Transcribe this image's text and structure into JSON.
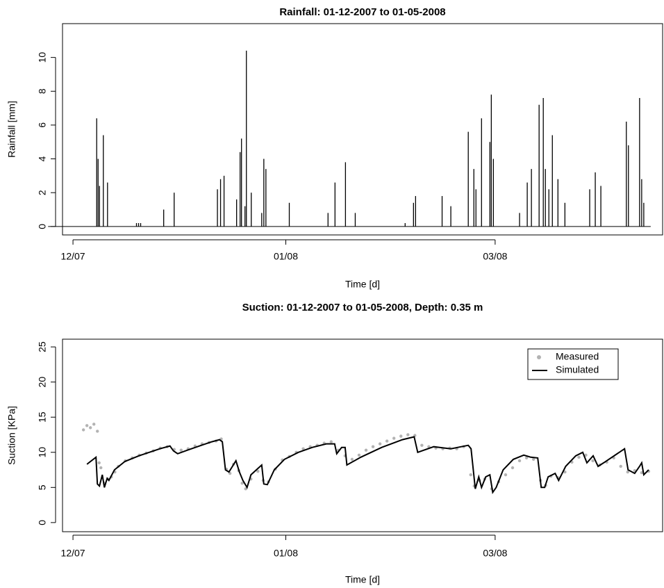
{
  "chart_data": [
    {
      "type": "bar",
      "title": "Rainfall: 01-12-2007 to 01-05-2008",
      "x_label": "Time [d]",
      "y_label": "Rainfall [mm]",
      "color": "#000000",
      "x": [
        6.8,
        7.2,
        7.6,
        8.7,
        9.9,
        18.2,
        18.8,
        19.4,
        26.0,
        29.0,
        41.4,
        42.3,
        43.3,
        46.9,
        47.9,
        48.3,
        49.3,
        49.7,
        51.1,
        54.1,
        54.7,
        55.3,
        62.0,
        73.1,
        75.1,
        78.1,
        80.9,
        95.2,
        97.6,
        98.2,
        105.8,
        108.3,
        113.3,
        114.9,
        115.5,
        117.1,
        119.5,
        119.9,
        120.5,
        128.0,
        130.2,
        131.4,
        133.6,
        134.8,
        135.4,
        136.4,
        137.4,
        139.0,
        141.0,
        148.1,
        149.7,
        151.3,
        158.6,
        159.2,
        162.4,
        163.0,
        163.6
      ],
      "values": [
        6.4,
        4.0,
        2.4,
        5.4,
        2.6,
        0.2,
        0.2,
        0.2,
        1.0,
        2.0,
        2.2,
        2.8,
        3.0,
        1.6,
        4.4,
        5.2,
        1.2,
        10.4,
        2.0,
        0.8,
        4.0,
        3.4,
        1.4,
        0.8,
        2.6,
        3.8,
        0.8,
        0.2,
        1.4,
        1.8,
        1.8,
        1.2,
        5.6,
        3.4,
        2.2,
        6.4,
        5.0,
        7.8,
        4.0,
        0.8,
        2.6,
        3.4,
        7.2,
        7.6,
        3.4,
        2.2,
        5.4,
        2.8,
        1.4,
        2.2,
        3.2,
        2.4,
        6.2,
        4.8,
        7.6,
        2.8,
        1.4
      ],
      "xlim": [
        -3,
        169
      ],
      "ylim": [
        -0.5,
        12
      ],
      "xticks": [
        {
          "value": 0,
          "label": "12/07"
        },
        {
          "value": 61,
          "label": "01/08"
        },
        {
          "value": 121,
          "label": "03/08"
        }
      ],
      "yticks": [
        0,
        2,
        4,
        6,
        8,
        10
      ]
    },
    {
      "type": "line",
      "title": "Suction: 01-12-2007 to 01-05-2008, Depth: 0.35 m",
      "x_label": "Time [d]",
      "y_label": "Suction [KPa]",
      "legend": "top-right",
      "series": [
        {
          "name": "Measured",
          "kind": "scatter",
          "color": "#b3b3b3",
          "x": [
            3,
            4,
            5,
            6,
            7,
            7.5,
            8,
            9,
            10,
            11,
            12,
            13,
            15,
            17,
            19,
            21,
            23,
            25,
            27,
            29,
            31,
            33,
            35,
            37,
            39,
            41,
            42.5,
            44,
            45,
            46,
            47.5,
            48.5,
            49.5,
            51,
            53,
            54.5,
            56,
            58,
            60,
            62,
            64,
            66,
            68,
            70,
            72,
            74,
            76,
            78,
            80,
            82,
            84,
            86,
            88,
            90,
            92,
            94,
            96,
            98,
            100,
            102,
            104,
            106,
            108,
            110,
            112,
            114,
            115,
            116.5,
            118,
            120,
            122,
            124,
            126,
            128,
            130,
            132,
            134,
            135.5,
            137,
            139,
            141,
            143,
            145,
            147,
            149,
            151,
            153,
            155,
            157,
            159,
            161,
            163,
            165
          ],
          "values": [
            13.2,
            13.8,
            13.5,
            14.0,
            13.0,
            8.5,
            7.8,
            5.6,
            6.2,
            6.5,
            7.2,
            8.0,
            8.8,
            9.2,
            9.6,
            9.9,
            10.2,
            10.6,
            10.8,
            10.4,
            10.3,
            10.5,
            10.9,
            11.2,
            11.4,
            11.6,
            11.9,
            7.6,
            7.0,
            8.3,
            7.4,
            5.6,
            4.8,
            6.2,
            7.3,
            6.0,
            5.8,
            7.6,
            8.9,
            9.4,
            10.0,
            10.5,
            10.8,
            11.0,
            11.3,
            11.5,
            10.3,
            9.5,
            9.0,
            9.6,
            10.3,
            10.8,
            11.2,
            11.6,
            12.0,
            12.3,
            12.5,
            12.4,
            11.0,
            10.8,
            10.6,
            10.5,
            10.6,
            10.5,
            10.8,
            6.8,
            5.2,
            6.0,
            6.2,
            4.8,
            5.8,
            6.8,
            7.8,
            8.8,
            9.2,
            9.0,
            6.0,
            5.3,
            6.6,
            6.4,
            7.2,
            8.6,
            9.3,
            9.6,
            8.8,
            8.2,
            8.6,
            9.2,
            8.0,
            7.2,
            7.4,
            7.1,
            7.3
          ]
        },
        {
          "name": "Simulated",
          "kind": "line",
          "color": "#000000",
          "x": [
            4,
            6.6,
            7,
            7.6,
            8.4,
            9,
            9.8,
            10.3,
            11.9,
            14.9,
            18.9,
            24.9,
            27.8,
            28.8,
            30,
            32.8,
            36.8,
            39.8,
            42,
            42.8,
            43.7,
            44.7,
            46.7,
            47.7,
            48.7,
            49.9,
            51,
            54.1,
            54.7,
            55.7,
            57.7,
            60.6,
            64.6,
            68.6,
            72.6,
            75,
            75.6,
            77,
            78,
            78.5,
            82.5,
            88.5,
            94.4,
            97.8,
            98.8,
            103.4,
            108.3,
            110.3,
            113.3,
            114.1,
            115.3,
            116.3,
            117.1,
            118.3,
            119.5,
            120.3,
            121.3,
            123.3,
            126.2,
            129.2,
            131.2,
            133.2,
            134.2,
            135.2,
            136.2,
            138.2,
            139.2,
            141.2,
            144.1,
            146.1,
            147.3,
            149.1,
            150.5,
            152.1,
            158.1,
            159.1,
            161,
            162.4,
            163,
            163.6,
            165
          ],
          "values": [
            8.3,
            9.3,
            5.5,
            5.2,
            6.8,
            5.0,
            6.3,
            6.0,
            7.5,
            8.7,
            9.5,
            10.5,
            10.9,
            10.2,
            9.8,
            10.3,
            11.0,
            11.5,
            11.8,
            11.5,
            7.5,
            7.2,
            8.8,
            7.2,
            6.0,
            5.0,
            6.8,
            8.2,
            5.5,
            5.4,
            7.5,
            9.0,
            10.0,
            10.7,
            11.2,
            11.2,
            9.8,
            10.7,
            10.7,
            8.2,
            9.3,
            10.7,
            11.8,
            12.2,
            10.0,
            10.8,
            10.5,
            10.7,
            11.0,
            10.5,
            4.8,
            6.5,
            5.0,
            6.5,
            6.8,
            4.3,
            5.0,
            7.5,
            9.0,
            9.6,
            9.3,
            9.2,
            5.0,
            5.0,
            6.5,
            7.0,
            6.0,
            8.0,
            9.5,
            10.0,
            8.5,
            9.5,
            8.0,
            8.5,
            10.5,
            7.5,
            7.0,
            8.0,
            8.5,
            6.8,
            7.5
          ]
        }
      ],
      "xlim": [
        -3,
        169
      ],
      "ylim": [
        -1.3,
        26.1
      ],
      "xticks": [
        {
          "value": 0,
          "label": "12/07"
        },
        {
          "value": 61,
          "label": "01/08"
        },
        {
          "value": 121,
          "label": "03/08"
        }
      ],
      "yticks": [
        0,
        5,
        10,
        15,
        20,
        25
      ]
    }
  ]
}
